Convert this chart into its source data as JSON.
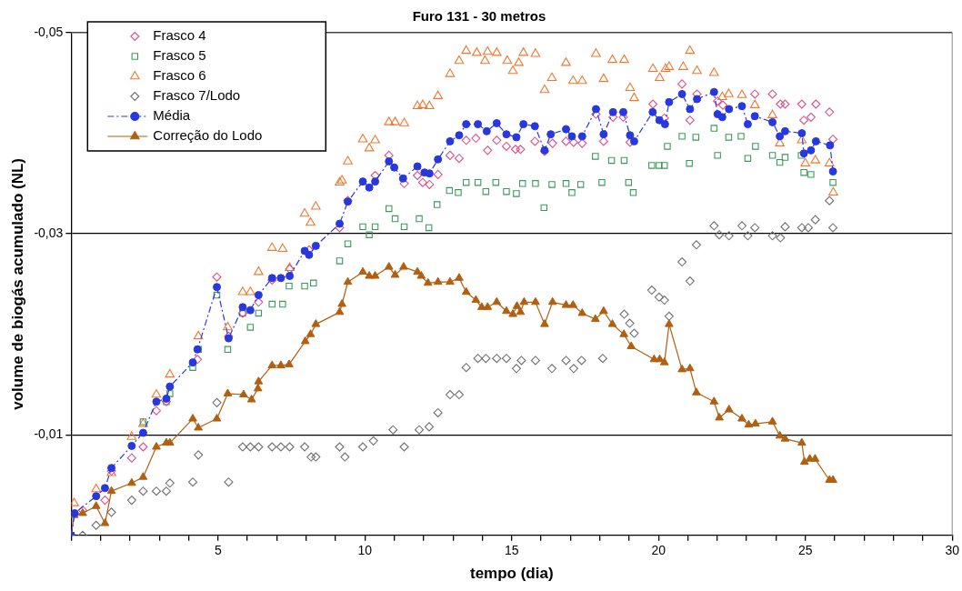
{
  "chart_data": {
    "type": "scatter",
    "title": "Furo 131 - 30 metros",
    "xlabel": "tempo (dia)",
    "ylabel": "volume de biogás acumulado (NL)",
    "xlim": [
      0,
      30
    ],
    "xticks": [
      {
        "value": 0,
        "label": null
      },
      {
        "value": 1,
        "label": null
      },
      {
        "value": 2,
        "label": null
      },
      {
        "value": 3,
        "label": null
      },
      {
        "value": 4,
        "label": null
      },
      5,
      {
        "value": 6,
        "label": null
      },
      {
        "value": 7,
        "label": null
      },
      {
        "value": 8,
        "label": null
      },
      {
        "value": 9,
        "label": null
      },
      10,
      {
        "value": 11,
        "label": null
      },
      {
        "value": 12,
        "label": null
      },
      {
        "value": 13,
        "label": null
      },
      {
        "value": 14,
        "label": null
      },
      15,
      {
        "value": 16,
        "label": null
      },
      {
        "value": 17,
        "label": null
      },
      {
        "value": 18,
        "label": null
      },
      {
        "value": 19,
        "label": null
      },
      20,
      {
        "value": 21,
        "label": null
      },
      {
        "value": 22,
        "label": null
      },
      {
        "value": 23,
        "label": null
      },
      {
        "value": 24,
        "label": null
      },
      25,
      {
        "value": 26,
        "label": null
      },
      {
        "value": 27,
        "label": null
      },
      {
        "value": 28,
        "label": null
      },
      {
        "value": 29,
        "label": null
      },
      30
    ],
    "ylim": [
      0,
      -0.05
    ],
    "yticks": [
      {
        "value": -0.01,
        "label": "-0,01"
      },
      {
        "value": -0.03,
        "label": "-0,03"
      },
      {
        "value": -0.05,
        "label": "-0,05"
      }
    ],
    "grid": "y",
    "legend": "top left",
    "series": [
      {
        "name": "Frasco 4",
        "type": "scatter",
        "marker": "diamond",
        "color": "#e0508c",
        "x": [
          0.39,
          1.15,
          1.37,
          2.06,
          2.45,
          2.9,
          3.24,
          4.3,
          4.96,
          5.36,
          5.84,
          6.38,
          6.84,
          7.44,
          8.1,
          9.14,
          9.42,
          10.35,
          10.82,
          11.34,
          11.79,
          11.97,
          12.2,
          12.49,
          12.9,
          13.21,
          13.45,
          13.78,
          14.18,
          14.49,
          14.82,
          15.13,
          15.3,
          15.79,
          16.12,
          16.39,
          16.85,
          17.11,
          17.4,
          17.87,
          18.13,
          18.45,
          18.8,
          19.03,
          19.81,
          20.2,
          20.8,
          21.07,
          21.31,
          22.01,
          22.19,
          23.28,
          23.88,
          24.15,
          24.31,
          24.88,
          24.95,
          25.19,
          25.36,
          25.82,
          25.94
        ],
        "values": [
          -0.0025,
          -0.0035,
          -0.0064,
          -0.0077,
          -0.0088,
          -0.0124,
          -0.0133,
          -0.0175,
          -0.0257,
          -0.0198,
          -0.0221,
          -0.0232,
          -0.0254,
          -0.0265,
          -0.0284,
          -0.0306,
          -0.0333,
          -0.0358,
          -0.0378,
          -0.035,
          -0.0358,
          -0.0351,
          -0.0349,
          -0.0359,
          -0.0378,
          -0.0375,
          -0.0393,
          -0.0395,
          -0.0383,
          -0.0393,
          -0.0387,
          -0.0384,
          -0.0384,
          -0.0392,
          -0.0382,
          -0.039,
          -0.0392,
          -0.0391,
          -0.039,
          -0.0419,
          -0.0392,
          -0.0416,
          -0.0416,
          -0.0391,
          -0.0429,
          -0.0415,
          -0.0449,
          -0.0413,
          -0.0439,
          -0.0432,
          -0.0428,
          -0.0439,
          -0.0439,
          -0.0429,
          -0.0429,
          -0.0429,
          -0.0413,
          -0.0416,
          -0.0429,
          -0.0421,
          -0.0394
        ]
      },
      {
        "name": "Frasco 5",
        "type": "scatter",
        "marker": "square",
        "color": "#3a9a5a",
        "x": [
          0,
          2.45,
          3.24,
          3.36,
          4.14,
          4.33,
          4.96,
          5.33,
          5.84,
          6.1,
          6.38,
          6.84,
          7.2,
          7.42,
          7.95,
          8.25,
          9.14,
          9.42,
          9.93,
          10.15,
          10.35,
          10.82,
          11.03,
          11.34,
          11.85,
          12.18,
          12.46,
          12.88,
          13.18,
          13.45,
          13.85,
          14.12,
          14.46,
          14.82,
          15.16,
          15.37,
          15.81,
          16.1,
          16.37,
          16.85,
          17.05,
          17.35,
          17.85,
          18.07,
          18.4,
          18.83,
          18.98,
          19.14,
          19.77,
          20.02,
          20.2,
          20.3,
          20.8,
          21.05,
          21.27,
          21.89,
          22.01,
          22.39,
          22.81,
          23.04,
          23.3,
          23.88,
          24.13,
          24.31,
          24.86,
          24.95,
          25.19,
          25.94
        ],
        "values": [
          0,
          -0.0113,
          -0.0133,
          -0.0141,
          -0.0167,
          -0.0185,
          -0.0239,
          -0.0185,
          -0.0221,
          -0.0207,
          -0.0221,
          -0.023,
          -0.023,
          -0.0248,
          -0.0248,
          -0.0251,
          -0.0273,
          -0.029,
          -0.0307,
          -0.0299,
          -0.0307,
          -0.0325,
          -0.0315,
          -0.0307,
          -0.0315,
          -0.0306,
          -0.0329,
          -0.0343,
          -0.0341,
          -0.0351,
          -0.0351,
          -0.0342,
          -0.0351,
          -0.0342,
          -0.034,
          -0.035,
          -0.035,
          -0.0326,
          -0.0349,
          -0.035,
          -0.0341,
          -0.0349,
          -0.0377,
          -0.0351,
          -0.0373,
          -0.0373,
          -0.0351,
          -0.0341,
          -0.0368,
          -0.0368,
          -0.0368,
          -0.0387,
          -0.0397,
          -0.037,
          -0.0396,
          -0.0405,
          -0.0378,
          -0.0396,
          -0.0397,
          -0.0375,
          -0.0387,
          -0.0378,
          -0.0371,
          -0.0376,
          -0.0378,
          -0.0361,
          -0.0359,
          -0.0351
        ]
      },
      {
        "name": "Frasco 6",
        "type": "scatter",
        "marker": "triangle",
        "color": "#f07830",
        "x": [
          0.1,
          0.85,
          1.37,
          2.06,
          2.45,
          2.9,
          3.36,
          4.33,
          5.33,
          5.84,
          6.1,
          6.38,
          6.84,
          7.2,
          7.44,
          7.95,
          8.15,
          8.33,
          9.14,
          9.22,
          9.42,
          9.93,
          10.15,
          10.35,
          10.82,
          11.03,
          11.34,
          11.79,
          11.97,
          12.2,
          12.49,
          12.9,
          13.21,
          13.45,
          13.81,
          14.09,
          14.18,
          14.49,
          14.85,
          15.04,
          15.24,
          15.4,
          15.81,
          16.12,
          16.37,
          16.85,
          17.09,
          17.4,
          17.87,
          18.13,
          18.43,
          18.83,
          19.03,
          19.17,
          19.81,
          20.04,
          20.24,
          20.36,
          20.84,
          21.07,
          21.31,
          21.89,
          22.17,
          22.39,
          22.84,
          23.28,
          23.88,
          24.13,
          24.88,
          25.0,
          25.34,
          25.82,
          25.95
        ],
        "values": [
          -0.0032,
          -0.0046,
          -0.0062,
          -0.0098,
          -0.0111,
          -0.014,
          -0.016,
          -0.0198,
          -0.0207,
          -0.0242,
          -0.0242,
          -0.0262,
          -0.0286,
          -0.0285,
          -0.0266,
          -0.032,
          -0.0311,
          -0.0327,
          -0.0351,
          -0.0353,
          -0.0372,
          -0.0394,
          -0.0385,
          -0.0393,
          -0.0411,
          -0.0411,
          -0.041,
          -0.0427,
          -0.0428,
          -0.0427,
          -0.0437,
          -0.0459,
          -0.0472,
          -0.0482,
          -0.048,
          -0.0472,
          -0.0481,
          -0.048,
          -0.0472,
          -0.0462,
          -0.047,
          -0.048,
          -0.0479,
          -0.0443,
          -0.0455,
          -0.047,
          -0.0452,
          -0.0452,
          -0.0479,
          -0.0454,
          -0.0473,
          -0.0473,
          -0.0445,
          -0.0435,
          -0.0464,
          -0.0455,
          -0.0464,
          -0.0466,
          -0.0466,
          -0.0482,
          -0.0462,
          -0.046,
          -0.0436,
          -0.0439,
          -0.0438,
          -0.0428,
          -0.0418,
          -0.039,
          -0.0393,
          -0.037,
          -0.0373,
          -0.037,
          -0.0341
        ]
      },
      {
        "name": "Frasco 7/Lodo",
        "type": "scatter",
        "marker": "diamond",
        "color": "#707070",
        "x": [
          0.39,
          0.85,
          1.37,
          2.06,
          2.45,
          2.9,
          3.24,
          3.36,
          4.14,
          4.33,
          4.96,
          5.36,
          5.84,
          6.1,
          6.38,
          6.84,
          7.14,
          7.44,
          7.95,
          8.17,
          8.33,
          9.14,
          9.32,
          9.93,
          10.29,
          10.96,
          11.34,
          11.85,
          12.19,
          12.49,
          12.9,
          13.21,
          13.45,
          13.85,
          14.12,
          14.49,
          14.82,
          15.16,
          15.33,
          15.81,
          16.37,
          16.85,
          17.11,
          17.38,
          18.1,
          18.83,
          19.02,
          19.17,
          19.77,
          20.02,
          20.2,
          20.36,
          20.8,
          21.07,
          21.29,
          21.89,
          22.07,
          22.4,
          22.84,
          23.04,
          23.28,
          23.88,
          24.15,
          24.31,
          24.88,
          25.1,
          25.34,
          25.82,
          25.94
        ],
        "values": [
          0,
          -0.001,
          -0.0023,
          -0.0035,
          -0.0044,
          -0.0044,
          -0.0044,
          -0.0052,
          -0.0053,
          -0.008,
          -0.0132,
          -0.0053,
          -0.0088,
          -0.0088,
          -0.0088,
          -0.0088,
          -0.0088,
          -0.0088,
          -0.0088,
          -0.0078,
          -0.0078,
          -0.0088,
          -0.0078,
          -0.0088,
          -0.0094,
          -0.0105,
          -0.0088,
          -0.0105,
          -0.0108,
          -0.0122,
          -0.014,
          -0.014,
          -0.0167,
          -0.0176,
          -0.0176,
          -0.0176,
          -0.0176,
          -0.0166,
          -0.0174,
          -0.0174,
          -0.0166,
          -0.0174,
          -0.0166,
          -0.0174,
          -0.0176,
          -0.022,
          -0.0211,
          -0.0201,
          -0.0244,
          -0.0237,
          -0.0234,
          -0.0218,
          -0.0272,
          -0.0253,
          -0.0289,
          -0.0308,
          -0.0299,
          -0.0298,
          -0.0308,
          -0.0298,
          -0.0306,
          -0.0298,
          -0.0296,
          -0.0307,
          -0.0306,
          -0.0306,
          -0.0314,
          -0.0333,
          -0.0306
        ]
      },
      {
        "name": "Média",
        "type": "line",
        "marker": "circle",
        "line_style": "dashed",
        "color": "#2838e0",
        "x": [
          0,
          0.12,
          0.85,
          1.15,
          1.37,
          2.06,
          2.45,
          2.9,
          3.24,
          3.36,
          4.14,
          4.3,
          4.96,
          5.36,
          5.84,
          6.1,
          6.38,
          6.84,
          7.14,
          7.44,
          7.95,
          8.1,
          8.33,
          9.14,
          9.42,
          9.93,
          10.15,
          10.35,
          10.82,
          11.0,
          11.3,
          11.79,
          12.03,
          12.2,
          12.49,
          12.9,
          13.21,
          13.45,
          13.85,
          14.15,
          14.49,
          14.82,
          15.16,
          15.4,
          15.79,
          16.12,
          16.33,
          16.85,
          17.05,
          17.4,
          17.87,
          18.13,
          18.45,
          18.8,
          19.03,
          19.17,
          19.8,
          20.03,
          20.22,
          20.36,
          20.8,
          21.07,
          21.31,
          21.89,
          22.01,
          22.17,
          22.4,
          22.84,
          23.04,
          23.28,
          23.88,
          24.13,
          24.31,
          24.88,
          24.95,
          25.19,
          25.36,
          25.84,
          25.94
        ],
        "values": [
          0,
          -0.0022,
          -0.0039,
          -0.0047,
          -0.0067,
          -0.0089,
          -0.0102,
          -0.0133,
          -0.0136,
          -0.0148,
          -0.0172,
          -0.0185,
          -0.0247,
          -0.0196,
          -0.0227,
          -0.0224,
          -0.0239,
          -0.0256,
          -0.0256,
          -0.0258,
          -0.0283,
          -0.0279,
          -0.0288,
          -0.031,
          -0.0332,
          -0.0352,
          -0.0346,
          -0.0352,
          -0.0372,
          -0.0366,
          -0.0355,
          -0.0367,
          -0.0361,
          -0.036,
          -0.0374,
          -0.0392,
          -0.0398,
          -0.0409,
          -0.0409,
          -0.0402,
          -0.041,
          -0.0399,
          -0.0396,
          -0.0409,
          -0.0407,
          -0.0383,
          -0.0399,
          -0.0404,
          -0.0397,
          -0.0397,
          -0.0424,
          -0.0399,
          -0.0421,
          -0.0421,
          -0.0398,
          -0.0392,
          -0.0421,
          -0.0413,
          -0.0409,
          -0.0431,
          -0.0439,
          -0.0424,
          -0.0434,
          -0.0441,
          -0.0419,
          -0.0416,
          -0.0424,
          -0.0427,
          -0.0409,
          -0.0417,
          -0.0411,
          -0.0397,
          -0.0402,
          -0.04,
          -0.038,
          -0.0383,
          -0.0392,
          -0.0388,
          -0.0362
        ]
      },
      {
        "name": "Correção do Lodo",
        "type": "line",
        "marker": "triangle",
        "line_style": "solid",
        "color": "#b06010",
        "x": [
          0,
          0.1,
          0.39,
          0.85,
          1.15,
          1.37,
          2.06,
          2.45,
          2.9,
          3.24,
          3.36,
          4.14,
          4.33,
          4.96,
          5.33,
          5.87,
          6.14,
          6.36,
          6.38,
          6.84,
          7.14,
          7.42,
          7.97,
          8.15,
          8.33,
          9.14,
          9.22,
          9.42,
          9.93,
          10.15,
          10.35,
          10.82,
          11.03,
          11.32,
          11.79,
          11.92,
          12.15,
          12.49,
          12.9,
          13.21,
          13.45,
          13.78,
          13.98,
          14.18,
          14.49,
          14.82,
          15.04,
          15.18,
          15.3,
          15.42,
          15.81,
          16.12,
          16.39,
          16.85,
          17.09,
          17.4,
          17.85,
          18.13,
          18.43,
          18.82,
          19.07,
          19.85,
          20.04,
          20.2,
          20.36,
          20.8,
          21.07,
          21.29,
          21.89,
          22.07,
          22.4,
          22.84,
          23.07,
          23.3,
          23.88,
          24.13,
          24.31,
          24.88,
          24.97,
          25.15,
          25.33,
          25.82,
          25.94
        ],
        "values": [
          0,
          -0.002,
          -0.0022,
          -0.0029,
          -0.0012,
          -0.0044,
          -0.0052,
          -0.0058,
          -0.0088,
          -0.0092,
          -0.0092,
          -0.0116,
          -0.0107,
          -0.0116,
          -0.0141,
          -0.014,
          -0.0135,
          -0.0146,
          -0.0153,
          -0.0169,
          -0.0169,
          -0.017,
          -0.0193,
          -0.02,
          -0.021,
          -0.0222,
          -0.023,
          -0.0252,
          -0.0262,
          -0.0258,
          -0.0258,
          -0.0267,
          -0.0259,
          -0.0267,
          -0.0262,
          -0.0258,
          -0.0251,
          -0.0252,
          -0.0252,
          -0.0256,
          -0.0242,
          -0.0234,
          -0.0227,
          -0.0227,
          -0.0232,
          -0.0223,
          -0.022,
          -0.0228,
          -0.0222,
          -0.0232,
          -0.0232,
          -0.021,
          -0.0232,
          -0.0229,
          -0.0229,
          -0.0221,
          -0.0215,
          -0.0223,
          -0.021,
          -0.02,
          -0.0188,
          -0.0175,
          -0.0175,
          -0.0172,
          -0.021,
          -0.0165,
          -0.0166,
          -0.0142,
          -0.0133,
          -0.0117,
          -0.0125,
          -0.0116,
          -0.011,
          -0.0111,
          -0.0113,
          -0.0099,
          -0.0096,
          -0.0092,
          -0.0073,
          -0.0076,
          -0.0076,
          -0.0055,
          -0.0055
        ]
      }
    ]
  }
}
